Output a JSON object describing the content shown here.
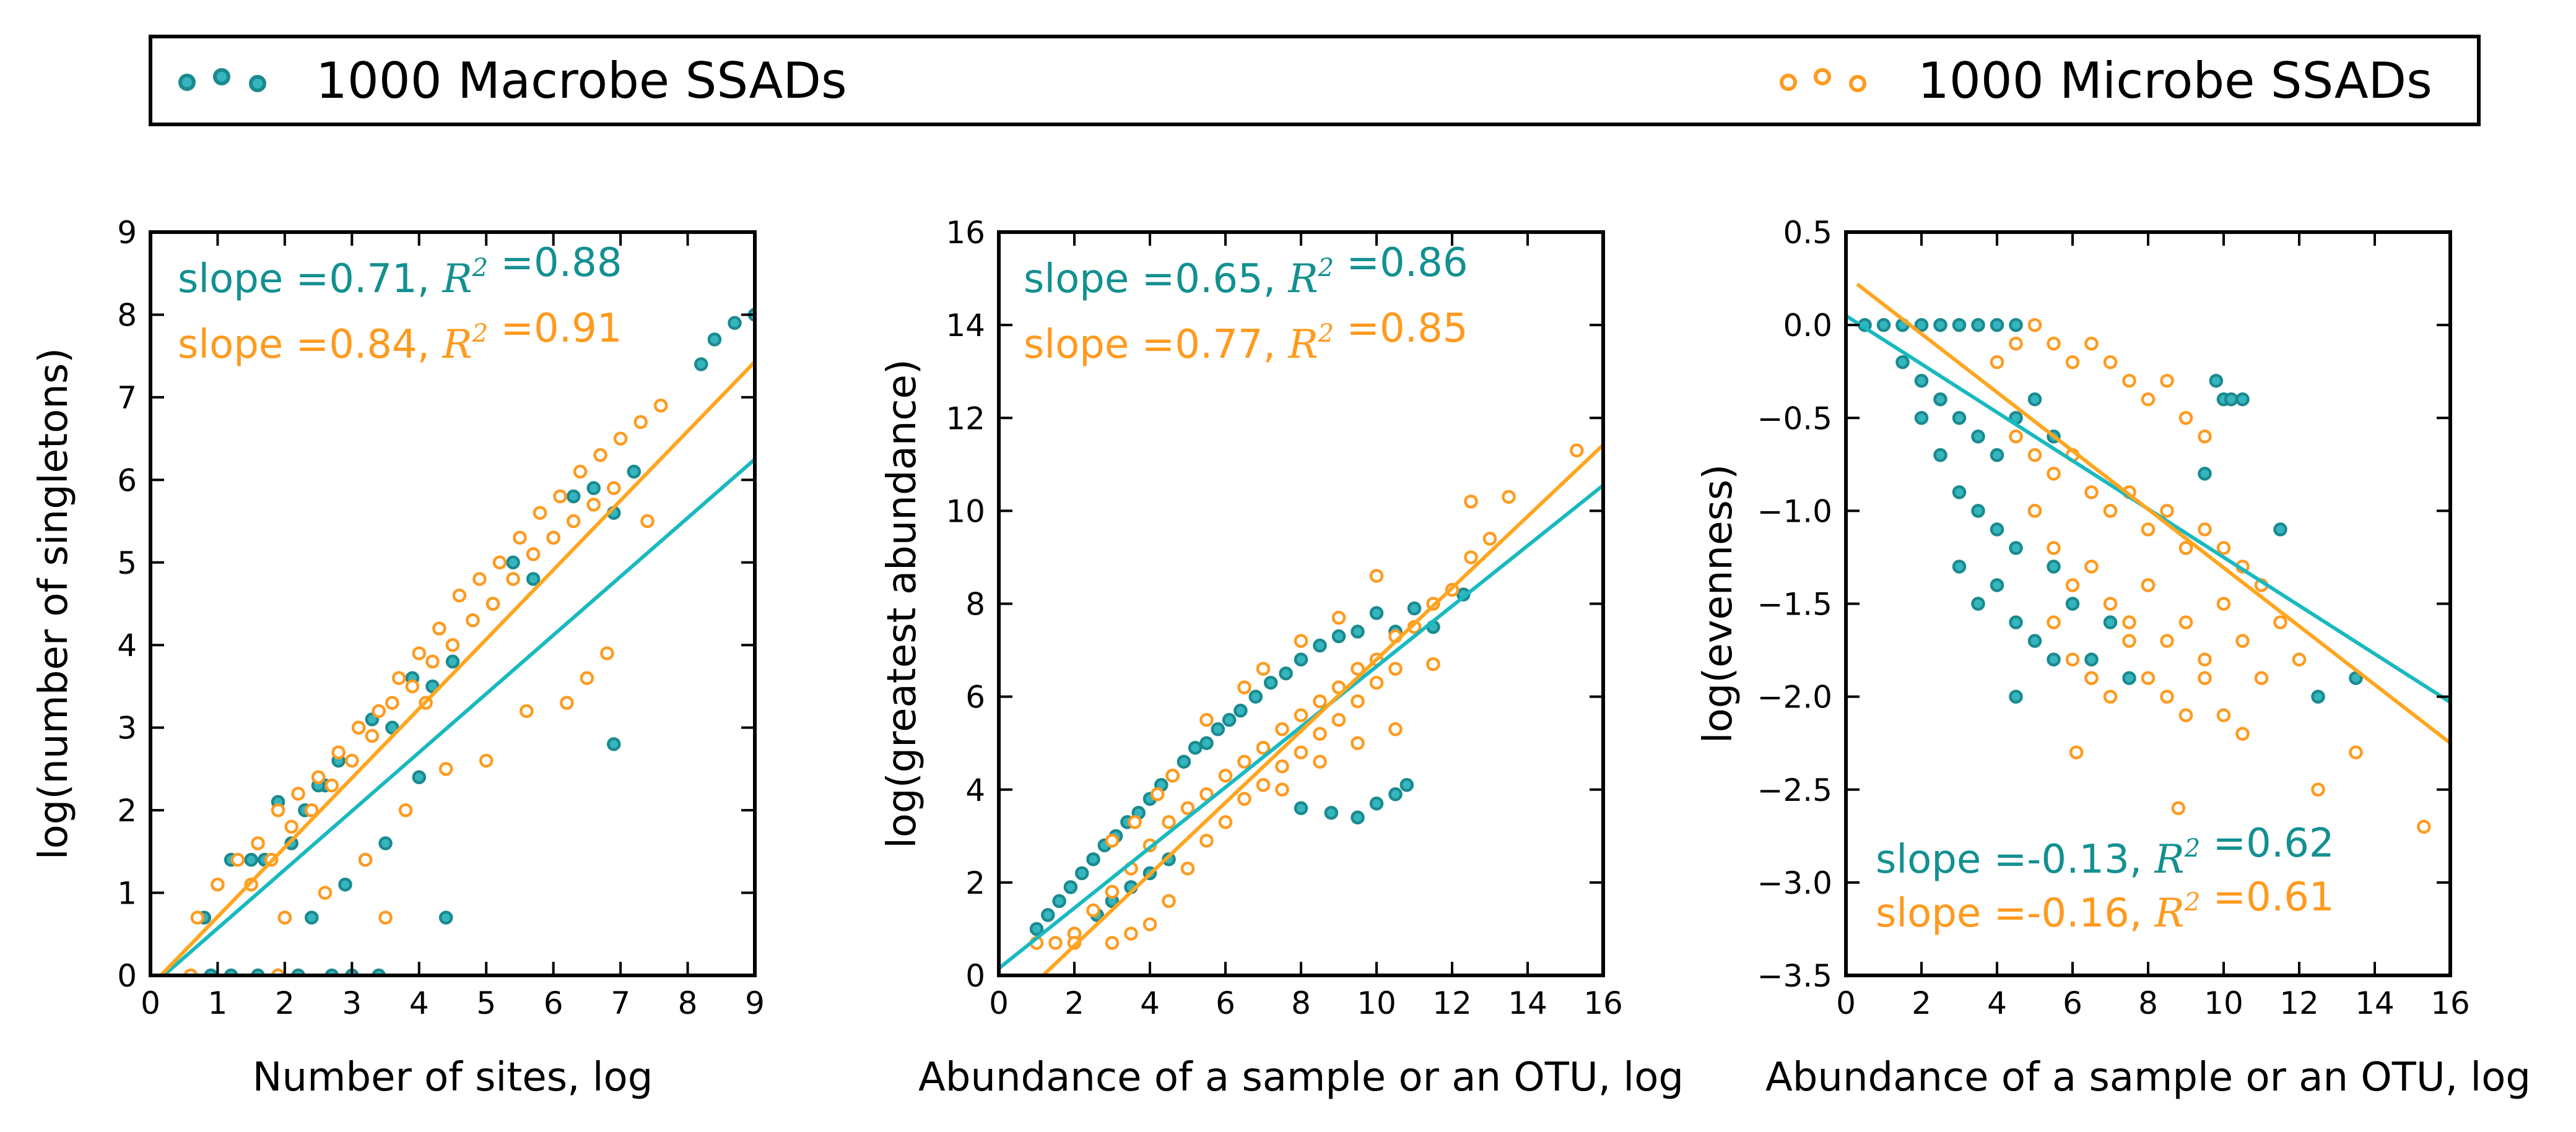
{
  "legend": {
    "position": "top",
    "entries": [
      {
        "label": "1000 Macrobe SSADs",
        "marker": "open-circle",
        "edge_color": "#1a8a8f",
        "fill_color": "#35b5bd"
      },
      {
        "label": "1000 Microbe SSADs",
        "marker": "open-circle",
        "edge_color": "#ff9a1f",
        "fill_color": "#ffffff"
      }
    ]
  },
  "chart_data": [
    {
      "type": "scatter",
      "xlabel": "Number of sites, log",
      "ylabel": "log(number of singletons)",
      "xlim": [
        0,
        9
      ],
      "ylim": [
        0,
        9
      ],
      "xticks": [
        "0",
        "1",
        "2",
        "3",
        "4",
        "5",
        "6",
        "7",
        "8",
        "9"
      ],
      "yticks": [
        "0",
        "1",
        "2",
        "3",
        "4",
        "5",
        "6",
        "7",
        "8",
        "9"
      ],
      "grid": false,
      "annotations": [
        {
          "series": "Macrobe",
          "slope_label": "slope =",
          "slope": "0.71",
          "r2_label": "R",
          "r2_sup": "2",
          "r2_eq": " =",
          "r2": "0.88",
          "color": "#139091"
        },
        {
          "series": "Microbe",
          "slope_label": "slope =",
          "slope": "0.84",
          "r2_label": "R",
          "r2_sup": "2",
          "r2_eq": " =",
          "r2": "0.91",
          "color": "#ff9a1f"
        }
      ],
      "fits": [
        {
          "series": "Macrobe",
          "x": [
            0,
            9
          ],
          "y": [
            -0.14,
            6.25
          ],
          "color": "#19b9c0"
        },
        {
          "series": "Microbe",
          "x": [
            0,
            9
          ],
          "y": [
            -0.13,
            7.43
          ],
          "color": "#ffa51f"
        }
      ],
      "series": [
        {
          "name": "Macrobe",
          "x": [
            0.8,
            1.2,
            1.5,
            1.9,
            2.1,
            2.3,
            2.6,
            2.8,
            3.1,
            3.3,
            3.6,
            3.9,
            4.2,
            4.5,
            4.8,
            5.1,
            5.4,
            5.7,
            6.0,
            6.3,
            6.6,
            6.9,
            7.2,
            2.0,
            2.4,
            2.9,
            3.2,
            3.5,
            4.0,
            4.4,
            6.9,
            8.2,
            8.4,
            8.7,
            9.0,
            1.2,
            1.6,
            2.2,
            2.7,
            3.0,
            3.4,
            1.7,
            2.5,
            0.9
          ],
          "y": [
            0.7,
            1.4,
            1.4,
            2.1,
            1.6,
            2.0,
            2.3,
            2.6,
            3.0,
            3.1,
            3.0,
            3.6,
            3.5,
            3.8,
            4.3,
            4.5,
            5.0,
            4.8,
            5.3,
            5.8,
            5.9,
            5.6,
            6.1,
            0.7,
            0.7,
            1.1,
            1.4,
            1.6,
            2.4,
            0.7,
            2.8,
            7.4,
            7.7,
            7.9,
            8.0,
            0.0,
            0.0,
            0.0,
            0.0,
            0.0,
            0.0,
            1.4,
            2.3,
            0.0
          ]
        },
        {
          "name": "Microbe",
          "x": [
            0.7,
            1.0,
            1.3,
            1.6,
            1.9,
            2.2,
            2.5,
            2.8,
            3.1,
            3.4,
            3.7,
            4.0,
            4.3,
            4.6,
            4.9,
            5.2,
            5.5,
            5.8,
            6.1,
            6.4,
            6.7,
            7.0,
            7.3,
            7.6,
            1.5,
            1.8,
            2.1,
            2.4,
            2.7,
            3.0,
            3.3,
            3.6,
            3.9,
            4.2,
            4.5,
            4.8,
            5.1,
            5.4,
            5.7,
            6.0,
            6.3,
            6.6,
            6.9,
            4.4,
            5.0,
            5.6,
            6.2,
            6.5,
            6.8,
            7.4,
            2.0,
            2.6,
            3.2,
            3.8,
            4.1,
            1.9,
            3.5,
            0.6
          ],
          "y": [
            0.7,
            1.1,
            1.4,
            1.6,
            2.0,
            2.2,
            2.4,
            2.7,
            3.0,
            3.2,
            3.6,
            3.9,
            4.2,
            4.6,
            4.8,
            5.0,
            5.3,
            5.6,
            5.8,
            6.1,
            6.3,
            6.5,
            6.7,
            6.9,
            1.1,
            1.4,
            1.8,
            2.0,
            2.3,
            2.6,
            2.9,
            3.3,
            3.5,
            3.8,
            4.0,
            4.3,
            4.5,
            4.8,
            5.1,
            5.3,
            5.5,
            5.7,
            5.9,
            2.5,
            2.6,
            3.2,
            3.3,
            3.6,
            3.9,
            5.5,
            0.7,
            1.0,
            1.4,
            2.0,
            3.3,
            0.0,
            0.7,
            0.0
          ]
        }
      ]
    },
    {
      "type": "scatter",
      "xlabel": "Abundance of a sample or an OTU, log",
      "ylabel": "log(greatest abundance)",
      "xlim": [
        0,
        16
      ],
      "ylim": [
        0,
        16
      ],
      "xticks": [
        "0",
        "2",
        "4",
        "6",
        "8",
        "10",
        "12",
        "14",
        "16"
      ],
      "yticks": [
        "0",
        "2",
        "4",
        "6",
        "8",
        "10",
        "12",
        "14",
        "16"
      ],
      "grid": false,
      "annotations": [
        {
          "series": "Macrobe",
          "slope_label": "slope =",
          "slope": "0.65",
          "r2_label": "R",
          "r2_sup": "2",
          "r2_eq": " =",
          "r2": "0.86",
          "color": "#139091"
        },
        {
          "series": "Microbe",
          "slope_label": "slope =",
          "slope": "0.77",
          "r2_label": "R",
          "r2_sup": "2",
          "r2_eq": " =",
          "r2": "0.85",
          "color": "#ff9a1f"
        }
      ],
      "fits": [
        {
          "series": "Macrobe",
          "x": [
            0,
            16
          ],
          "y": [
            0.15,
            10.55
          ],
          "color": "#19b9c0"
        },
        {
          "series": "Microbe",
          "x": [
            0,
            16
          ],
          "y": [
            -0.9,
            11.42
          ],
          "color": "#ffa51f"
        }
      ],
      "series": [
        {
          "name": "Macrobe",
          "x": [
            1.0,
            1.3,
            1.6,
            1.9,
            2.2,
            2.5,
            2.8,
            3.1,
            3.4,
            3.7,
            4.0,
            4.3,
            4.6,
            4.9,
            5.2,
            5.5,
            5.8,
            6.1,
            6.4,
            6.8,
            7.2,
            7.6,
            8.0,
            8.5,
            9.0,
            9.5,
            10.0,
            10.5,
            11.0,
            11.5,
            12.3,
            2.0,
            2.6,
            3.0,
            3.5,
            4.0,
            4.5,
            9.5,
            10.0,
            10.5,
            10.8,
            8.0,
            8.8
          ],
          "y": [
            1.0,
            1.3,
            1.6,
            1.9,
            2.2,
            2.5,
            2.8,
            3.0,
            3.3,
            3.5,
            3.8,
            4.1,
            4.3,
            4.6,
            4.9,
            5.0,
            5.3,
            5.5,
            5.7,
            6.0,
            6.3,
            6.5,
            6.8,
            7.1,
            7.3,
            7.4,
            7.8,
            7.4,
            7.9,
            7.5,
            8.2,
            0.9,
            1.3,
            1.6,
            1.9,
            2.2,
            2.5,
            3.4,
            3.7,
            3.9,
            4.1,
            3.6,
            3.5
          ]
        },
        {
          "name": "Microbe",
          "x": [
            1.0,
            1.5,
            2.0,
            2.5,
            3.0,
            3.5,
            4.0,
            4.5,
            5.0,
            5.5,
            6.0,
            6.5,
            7.0,
            7.5,
            8.0,
            8.5,
            9.0,
            9.5,
            10.0,
            10.5,
            11.0,
            11.5,
            12.0,
            12.5,
            13.0,
            13.5,
            15.3,
            3.0,
            3.5,
            4.0,
            4.5,
            5.0,
            5.5,
            6.0,
            6.5,
            7.0,
            7.5,
            8.0,
            8.5,
            9.0,
            9.5,
            10.0,
            10.5,
            5.5,
            6.5,
            7.0,
            8.0,
            9.0,
            10.0,
            7.5,
            8.5,
            9.5,
            10.5,
            11.5,
            12.5,
            3.0,
            3.6,
            4.2,
            4.6,
            2.0
          ],
          "y": [
            0.7,
            0.7,
            0.9,
            1.4,
            1.8,
            2.3,
            2.8,
            3.3,
            3.6,
            3.9,
            4.3,
            4.6,
            4.9,
            5.3,
            5.6,
            5.9,
            6.2,
            6.6,
            6.8,
            7.3,
            7.5,
            8.0,
            8.3,
            9.0,
            9.4,
            10.3,
            11.3,
            0.7,
            0.9,
            1.1,
            1.6,
            2.3,
            2.9,
            3.3,
            3.8,
            4.1,
            4.5,
            4.8,
            5.2,
            5.5,
            5.9,
            6.3,
            6.6,
            5.5,
            6.2,
            6.6,
            7.2,
            7.7,
            8.6,
            4.0,
            4.6,
            5.0,
            5.3,
            6.7,
            10.2,
            2.9,
            3.3,
            3.9,
            4.3,
            0.7
          ]
        }
      ]
    },
    {
      "type": "scatter",
      "xlabel": "Abundance of a sample or an OTU, log",
      "ylabel": "log(evenness)",
      "xlim": [
        0,
        16
      ],
      "ylim": [
        -3.5,
        0.5
      ],
      "xticks": [
        "0",
        "2",
        "4",
        "6",
        "8",
        "10",
        "12",
        "14",
        "16"
      ],
      "yticks": [
        "0.5",
        "0.0",
        "−0.5",
        "−1.0",
        "−1.5",
        "−2.0",
        "−2.5",
        "−3.0",
        "−3.5"
      ],
      "ytick_values": [
        0.5,
        0.0,
        -0.5,
        -1.0,
        -1.5,
        -2.0,
        -2.5,
        -3.0,
        -3.5
      ],
      "grid": false,
      "annotations": [
        {
          "series": "Macrobe",
          "slope_label": "slope =",
          "slope": "-0.13",
          "r2_label": "R",
          "r2_sup": "2",
          "r2_eq": " =",
          "r2": "0.62",
          "color": "#139091"
        },
        {
          "series": "Microbe",
          "slope_label": "slope =",
          "slope": "-0.16",
          "r2_label": "R",
          "r2_sup": "2",
          "r2_eq": " =",
          "r2": "0.61",
          "color": "#ff9a1f"
        }
      ],
      "fits": [
        {
          "series": "Macrobe",
          "x": [
            0,
            16
          ],
          "y": [
            0.05,
            -2.03
          ],
          "color": "#19b9c0"
        },
        {
          "series": "Microbe",
          "x": [
            0.3,
            16
          ],
          "y": [
            0.22,
            -2.25
          ],
          "color": "#ffa51f"
        }
      ],
      "series": [
        {
          "name": "Macrobe",
          "x": [
            0.5,
            1.0,
            1.5,
            2.0,
            2.5,
            3.0,
            3.5,
            4.0,
            4.5,
            1.5,
            2.0,
            2.5,
            3.0,
            3.5,
            4.0,
            4.5,
            5.0,
            5.5,
            2.0,
            2.5,
            3.0,
            3.5,
            4.0,
            4.5,
            5.0,
            3.0,
            3.5,
            4.0,
            4.5,
            5.0,
            5.5,
            6.0,
            6.5,
            7.0,
            7.5,
            8.0,
            9.0,
            9.5,
            10.0,
            10.5,
            11.5,
            12.5,
            13.5,
            4.5,
            5.5,
            6.5,
            9.8,
            10.2
          ],
          "y": [
            0.0,
            0.0,
            0.0,
            0.0,
            0.0,
            0.0,
            0.0,
            0.0,
            0.0,
            -0.2,
            -0.3,
            -0.4,
            -0.5,
            -0.6,
            -0.7,
            -0.5,
            -0.4,
            -0.6,
            -0.5,
            -0.7,
            -0.9,
            -1.0,
            -1.1,
            -1.2,
            -1.0,
            -1.3,
            -1.5,
            -1.4,
            -1.6,
            -1.7,
            -1.3,
            -1.5,
            -1.8,
            -1.6,
            -1.9,
            -1.4,
            -1.2,
            -0.8,
            -0.4,
            -0.4,
            -1.1,
            -2.0,
            -1.9,
            -2.0,
            -1.8,
            -1.9,
            -0.3,
            -0.4
          ]
        },
        {
          "name": "Microbe",
          "x": [
            4.0,
            4.5,
            5.0,
            5.5,
            6.0,
            6.5,
            7.0,
            7.5,
            8.0,
            8.5,
            9.0,
            9.5,
            4.5,
            5.0,
            5.5,
            6.0,
            6.5,
            7.0,
            7.5,
            8.0,
            8.5,
            9.0,
            9.5,
            10.0,
            10.5,
            11.0,
            5.0,
            5.5,
            6.0,
            6.5,
            7.0,
            7.5,
            8.0,
            8.5,
            9.0,
            9.5,
            10.0,
            10.5,
            11.0,
            11.5,
            12.0,
            5.5,
            6.0,
            6.5,
            7.0,
            7.5,
            8.0,
            8.5,
            9.0,
            9.5,
            10.0,
            10.5,
            11.0,
            12.5,
            13.5,
            15.3,
            8.8,
            6.1
          ],
          "y": [
            -0.2,
            -0.1,
            0.0,
            -0.1,
            -0.2,
            -0.1,
            -0.2,
            -0.3,
            -0.4,
            -0.3,
            -0.5,
            -0.6,
            -0.6,
            -0.7,
            -0.8,
            -0.7,
            -0.9,
            -1.0,
            -0.9,
            -1.1,
            -1.0,
            -1.2,
            -1.1,
            -1.2,
            -1.3,
            -1.4,
            -1.0,
            -1.2,
            -1.4,
            -1.3,
            -1.5,
            -1.6,
            -1.4,
            -1.7,
            -1.6,
            -1.8,
            -1.5,
            -1.7,
            -1.9,
            -1.6,
            -1.8,
            -1.6,
            -1.8,
            -1.9,
            -2.0,
            -1.7,
            -1.9,
            -2.0,
            -2.1,
            -1.9,
            -2.1,
            -2.2,
            -1.9,
            -2.5,
            -2.3,
            -2.7,
            -2.6,
            -2.3
          ]
        }
      ]
    }
  ]
}
